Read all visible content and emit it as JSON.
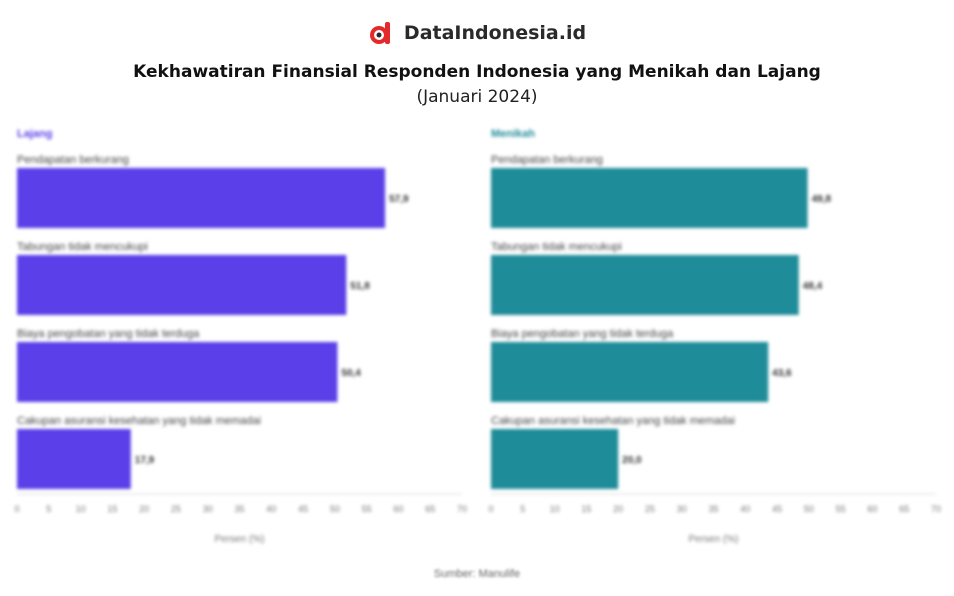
{
  "brand": {
    "name": "DataIndonesia.id",
    "icon": "dataindonesia-logo-icon",
    "accent": "#e4292a"
  },
  "header": {
    "title": "Kekhawatiran Finansial Responden Indonesia yang Menikah dan Lajang",
    "subtitle": "(Januari 2024)"
  },
  "source": "Sumber: Manulife",
  "chart_data": [
    {
      "type": "bar",
      "orientation": "horizontal",
      "panel_title": "Lajang",
      "color": "#5b3fe8",
      "categories": [
        "Pendapatan berkurang",
        "Tabungan tidak mencukupi",
        "Biaya pengobatan yang tidak terduga",
        "Cakupan asuransi kesehatan yang tidak memadai"
      ],
      "values": [
        57.9,
        51.8,
        50.4,
        17.9
      ],
      "value_labels": [
        "57,9",
        "51,8",
        "50,4",
        "17,9"
      ],
      "xlabel": "Persen (%)",
      "xlim": [
        0,
        70
      ],
      "xticks": [
        "0",
        "5",
        "10",
        "15",
        "20",
        "25",
        "30",
        "35",
        "40",
        "45",
        "50",
        "55",
        "60",
        "65",
        "70"
      ],
      "grid": false
    },
    {
      "type": "bar",
      "orientation": "horizontal",
      "panel_title": "Menikah",
      "color": "#1f8c99",
      "categories": [
        "Pendapatan berkurang",
        "Tabungan tidak mencukupi",
        "Biaya pengobatan yang tidak terduga",
        "Cakupan asuransi kesehatan yang tidak memadai"
      ],
      "values": [
        49.8,
        48.4,
        43.6,
        20.0
      ],
      "value_labels": [
        "49,8",
        "48,4",
        "43,6",
        "20,0"
      ],
      "xlabel": "Persen (%)",
      "xlim": [
        0,
        70
      ],
      "xticks": [
        "0",
        "5",
        "10",
        "15",
        "20",
        "25",
        "30",
        "35",
        "40",
        "45",
        "50",
        "55",
        "60",
        "65",
        "70"
      ],
      "grid": false
    }
  ]
}
